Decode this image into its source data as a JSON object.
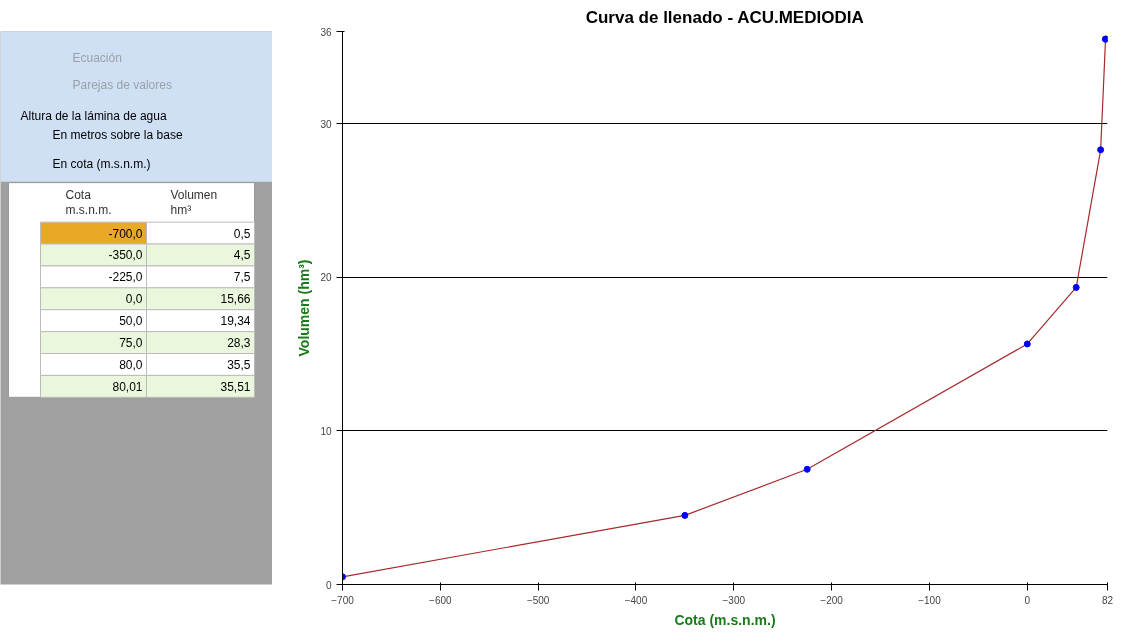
{
  "chart_data": {
    "type": "line",
    "title": "Curva de llenado - ACU.MEDIODIA",
    "xlabel": "Cota (m.s.n.m.)",
    "ylabel": "Volumen (hm³)",
    "x": [
      -700,
      -350,
      -225,
      0,
      50,
      75,
      80,
      80.01
    ],
    "series": [
      {
        "color": "#a52a2a",
        "values": [
          0.5,
          4.5,
          7.5,
          15.66,
          19.34,
          28.3,
          35.5,
          35.51
        ]
      }
    ],
    "xlim": [
      -700,
      82
    ],
    "xticks": [
      -700,
      -600,
      -500,
      -400,
      -300,
      -200,
      -100,
      0,
      82
    ],
    "ylim": [
      0,
      36
    ],
    "yticks": [
      0,
      10,
      20,
      30,
      36
    ],
    "grid": "y",
    "marker": "circle",
    "annotations": [
      "Ecuación",
      "Parejas de valores",
      "Altura de la lámina de agua",
      "En metros sobre la base",
      "En cota (m.s.n.m.)",
      "Cota m.s.n.m.",
      "Volumen hm³",
      "-700,0",
      "0,5",
      "-350,0",
      "4,5",
      "-225,0",
      "7,5",
      "0,0",
      "15,66",
      "50,0",
      "19,34",
      "75,0",
      "28,3",
      "80,0",
      "35,5",
      "80,01",
      "35,51"
    ]
  }
}
